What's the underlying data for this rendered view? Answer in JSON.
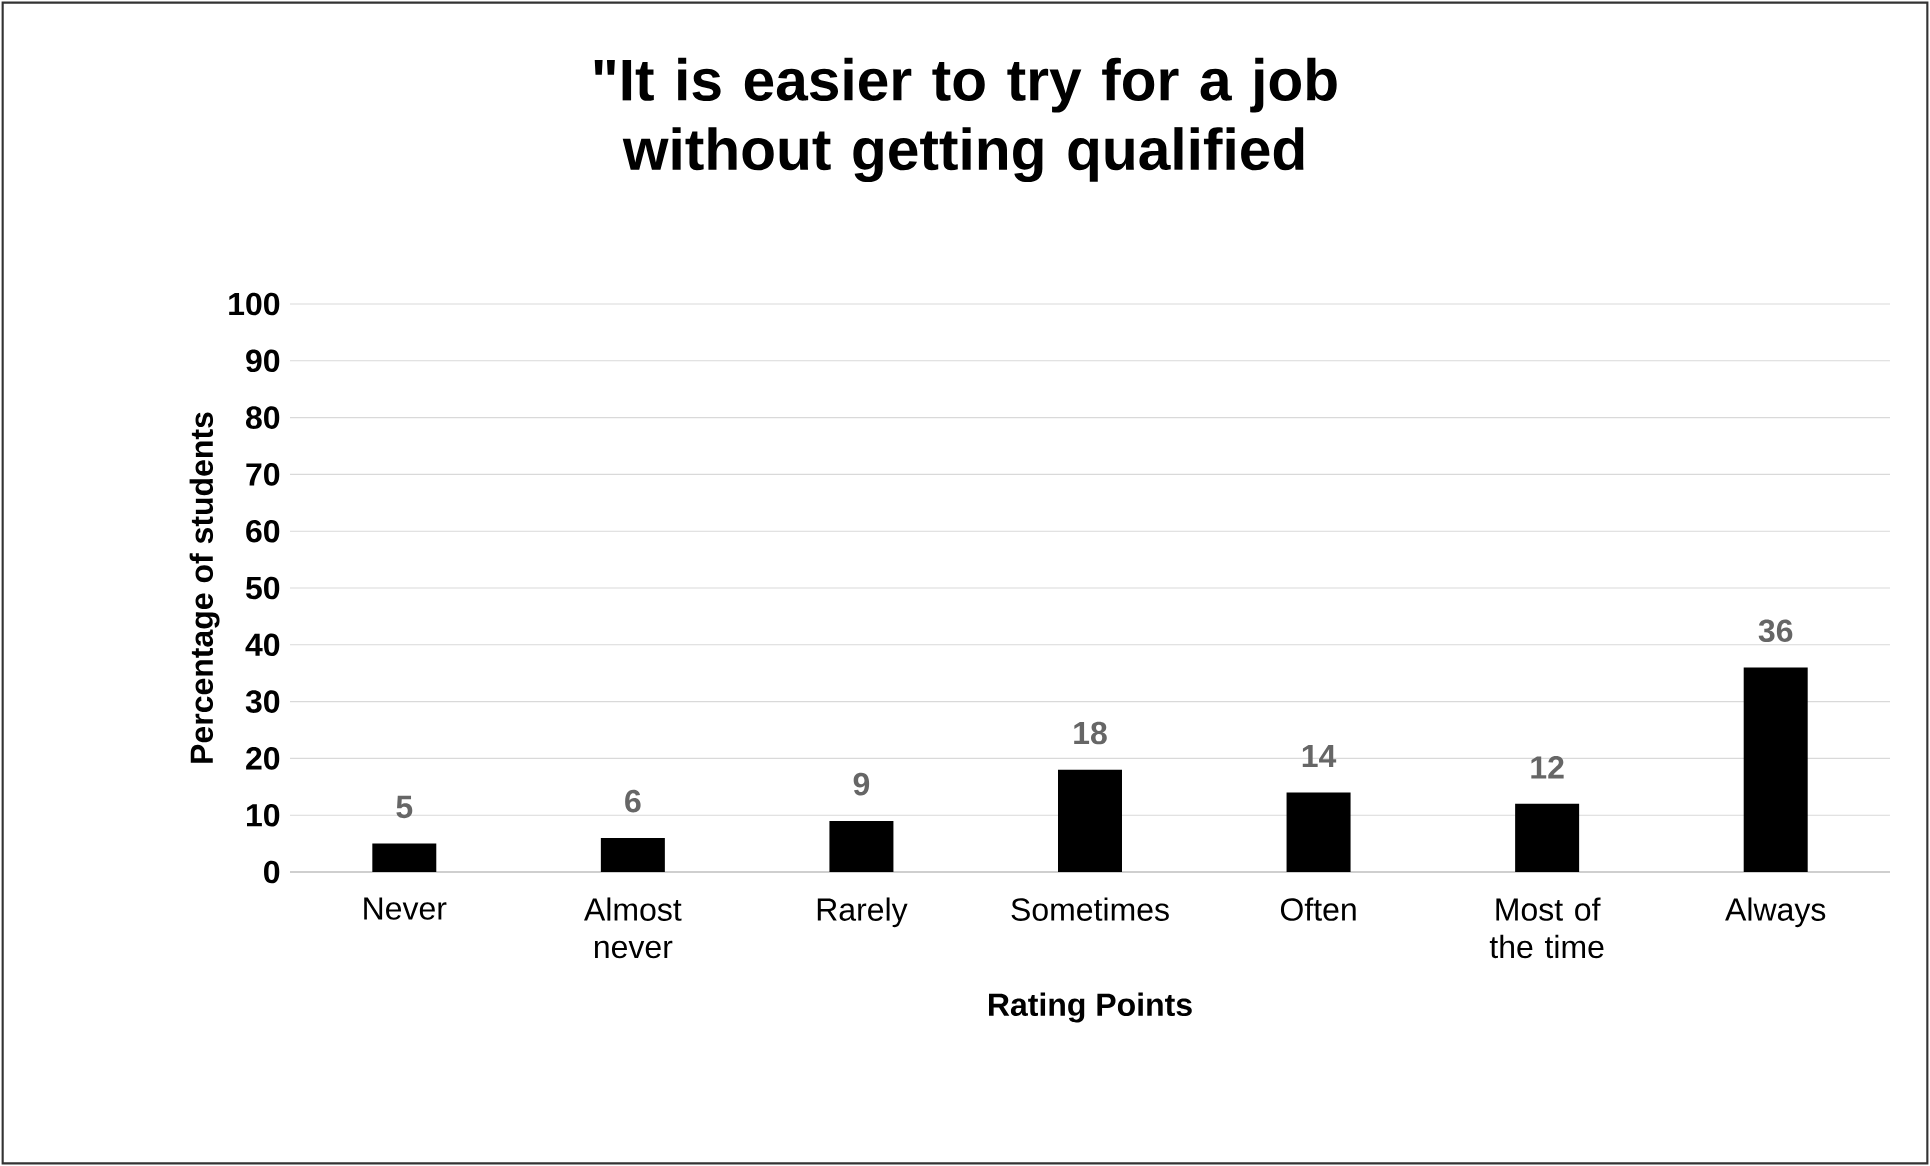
{
  "chart_data": {
    "type": "bar",
    "title": "\"It is easier to try for a job without getting qualified",
    "xlabel": "Rating Points",
    "ylabel": "Percentage of students",
    "categories": [
      "Never",
      "Almost never",
      "Rarely",
      "Sometimes",
      "Often",
      "Most of the time",
      "Always"
    ],
    "values": [
      5,
      6,
      9,
      18,
      14,
      12,
      36
    ],
    "color": "#000000",
    "ylim": [
      0,
      100
    ],
    "yticks": [
      0,
      10,
      20,
      30,
      40,
      50,
      60,
      70,
      80,
      90,
      100
    ],
    "grid": "y",
    "data_labels": true
  }
}
